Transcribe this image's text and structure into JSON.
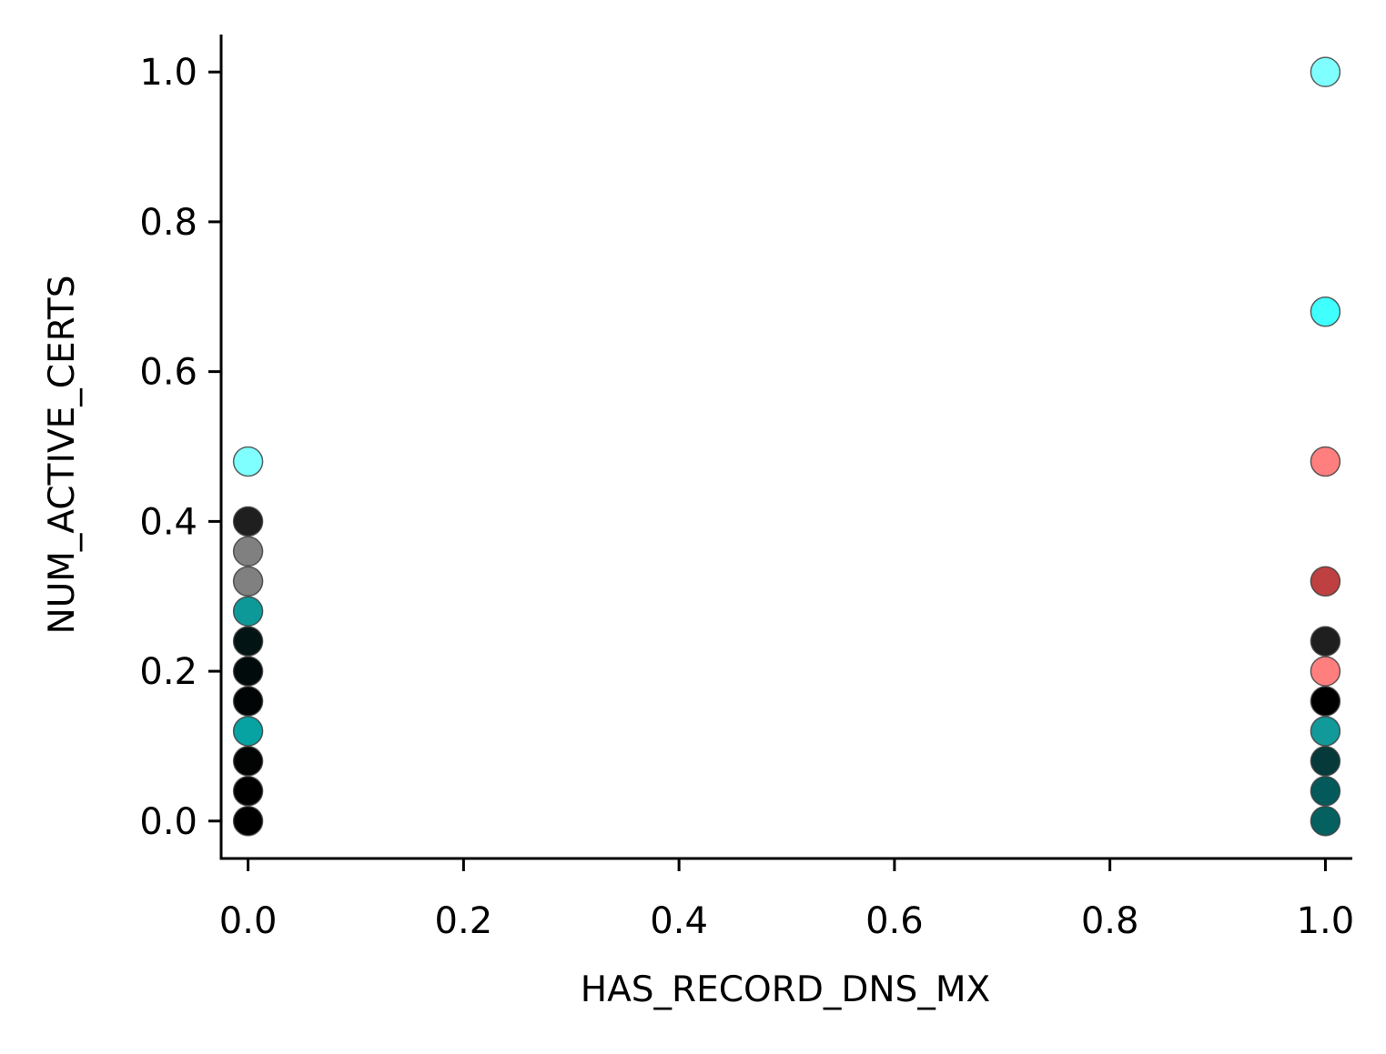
{
  "chart_data": {
    "type": "scatter",
    "title": "",
    "xlabel": "HAS_RECORD_DNS_MX",
    "ylabel": "NUM_ACTIVE_CERTS",
    "xlim": [
      -0.025,
      1.025
    ],
    "ylim": [
      -0.05,
      1.05
    ],
    "x_ticks": [
      0.0,
      0.2,
      0.4,
      0.6,
      0.8,
      1.0
    ],
    "y_ticks": [
      0.0,
      0.2,
      0.4,
      0.6,
      0.8,
      1.0
    ],
    "x_tick_labels": [
      "0.0",
      "0.2",
      "0.4",
      "0.6",
      "0.8",
      "1.0"
    ],
    "y_tick_labels": [
      "0.0",
      "0.2",
      "0.4",
      "0.6",
      "0.8",
      "1.0"
    ],
    "grid": false,
    "legend": null,
    "points": [
      {
        "x": 0.0,
        "y": 0.48,
        "color": "#7fffff"
      },
      {
        "x": 0.0,
        "y": 0.4,
        "color": "#1f1f1f"
      },
      {
        "x": 0.0,
        "y": 0.36,
        "color": "#808080"
      },
      {
        "x": 0.0,
        "y": 0.32,
        "color": "#808080"
      },
      {
        "x": 0.0,
        "y": 0.28,
        "color": "#0e9999"
      },
      {
        "x": 0.0,
        "y": 0.24,
        "color": "#031414"
      },
      {
        "x": 0.0,
        "y": 0.2,
        "color": "#020b0b"
      },
      {
        "x": 0.0,
        "y": 0.16,
        "color": "#010505"
      },
      {
        "x": 0.0,
        "y": 0.12,
        "color": "#07a3a3"
      },
      {
        "x": 0.0,
        "y": 0.08,
        "color": "#020404"
      },
      {
        "x": 0.0,
        "y": 0.04,
        "color": "#000000"
      },
      {
        "x": 0.0,
        "y": 0.0,
        "color": "#000000"
      },
      {
        "x": 1.0,
        "y": 1.0,
        "color": "#7fffff"
      },
      {
        "x": 1.0,
        "y": 0.68,
        "color": "#40ffff"
      },
      {
        "x": 1.0,
        "y": 0.48,
        "color": "#ff7f7f"
      },
      {
        "x": 1.0,
        "y": 0.32,
        "color": "#bf4040"
      },
      {
        "x": 1.0,
        "y": 0.24,
        "color": "#1f1f1f"
      },
      {
        "x": 1.0,
        "y": 0.2,
        "color": "#ff7f7f"
      },
      {
        "x": 1.0,
        "y": 0.16,
        "color": "#000000"
      },
      {
        "x": 1.0,
        "y": 0.12,
        "color": "#129999"
      },
      {
        "x": 1.0,
        "y": 0.08,
        "color": "#063a3a"
      },
      {
        "x": 1.0,
        "y": 0.04,
        "color": "#045a5a"
      },
      {
        "x": 1.0,
        "y": 0.0,
        "color": "#056060"
      }
    ]
  }
}
